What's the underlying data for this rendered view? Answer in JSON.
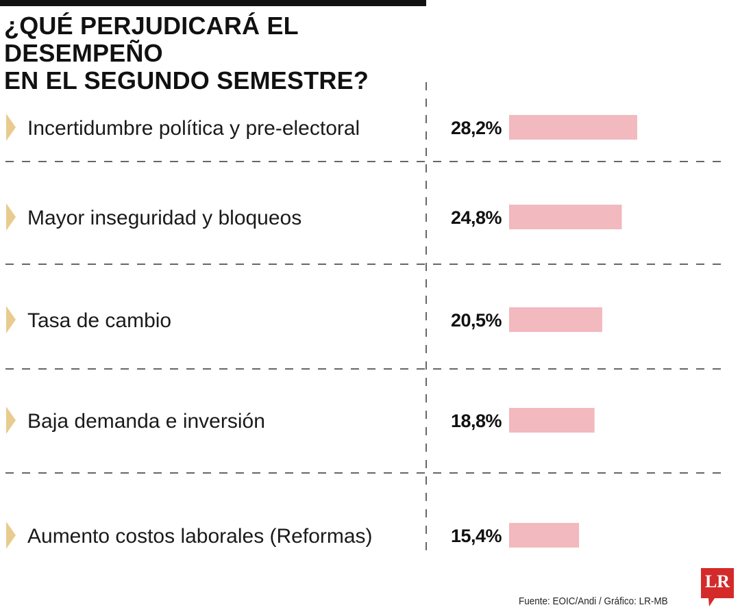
{
  "title_lines": [
    "¿QUÉ PERJUDICARÁ EL DESEMPEÑO",
    "EN EL SEGUNDO SEMESTRE?"
  ],
  "colors": {
    "bar": "#f2b9be",
    "bullet": "#e8cc8f",
    "rule": "#333333"
  },
  "chart_data": {
    "type": "bar",
    "orientation": "horizontal",
    "categories": [
      "Incertidumbre política y pre-electoral",
      "Mayor inseguridad y bloqueos",
      "Tasa de cambio",
      "Baja demanda e inversión",
      "Aumento costos laborales (Reformas)"
    ],
    "values": [
      28.2,
      24.8,
      20.5,
      18.8,
      15.4
    ],
    "value_labels": [
      "28,2%",
      "24,8%",
      "20,5%",
      "18,8%",
      "15,4%"
    ],
    "unit": "%",
    "grid": false
  },
  "footer": {
    "source": "Fuente:  EOIC/Andi / Gráfico: LR-MB"
  },
  "logo": {
    "text": "LR",
    "color": "#d42a2a"
  }
}
